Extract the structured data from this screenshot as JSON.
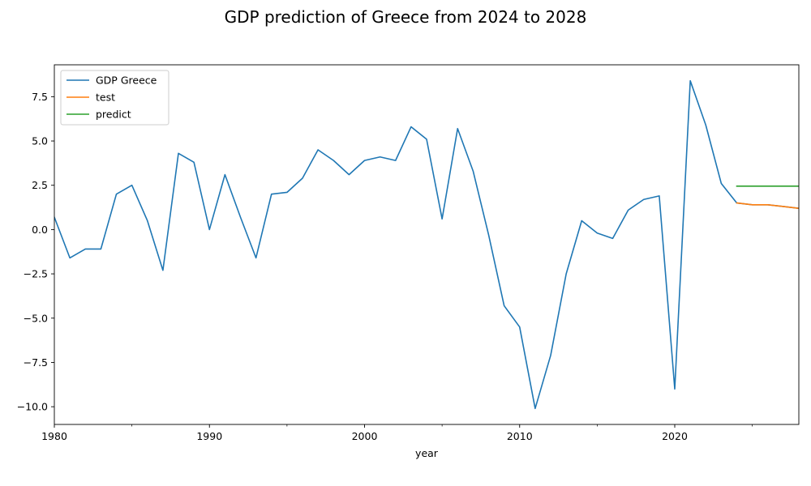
{
  "chart_data": {
    "type": "line",
    "title": "GDP prediction of Greece from 2024 to 2028",
    "xlabel": "year",
    "ylabel": "",
    "xlim": [
      1980,
      2028
    ],
    "ylim": [
      -11.0,
      9.3
    ],
    "x_ticks": [
      {
        "value": 1980,
        "label": "1980"
      },
      {
        "value": 1990,
        "label": "1990"
      },
      {
        "value": 2000,
        "label": "2000"
      },
      {
        "value": 2010,
        "label": "2010"
      },
      {
        "value": 2020,
        "label": "2020"
      }
    ],
    "x_minor_ticks": [
      1985,
      1995,
      2005,
      2015,
      2025
    ],
    "y_ticks": [
      {
        "value": 7.5,
        "label": "7.5"
      },
      {
        "value": 5.0,
        "label": "5.0"
      },
      {
        "value": 2.5,
        "label": "2.5"
      },
      {
        "value": 0.0,
        "label": "0.0"
      },
      {
        "value": -2.5,
        "label": "−2.5"
      },
      {
        "value": -5.0,
        "label": "−5.0"
      },
      {
        "value": -7.5,
        "label": "−7.5"
      },
      {
        "value": -10.0,
        "label": "−10.0"
      }
    ],
    "grid": false,
    "legend_position": "top-left",
    "series": [
      {
        "name": "GDP Greece",
        "color": "#1f77b4",
        "points": [
          [
            1980,
            0.7
          ],
          [
            1981,
            -1.6
          ],
          [
            1982,
            -1.1
          ],
          [
            1983,
            -1.1
          ],
          [
            1984,
            2.0
          ],
          [
            1985,
            2.5
          ],
          [
            1986,
            0.5
          ],
          [
            1987,
            -2.3
          ],
          [
            1988,
            4.3
          ],
          [
            1989,
            3.8
          ],
          [
            1990,
            0.0
          ],
          [
            1991,
            3.1
          ],
          [
            1992,
            0.7
          ],
          [
            1993,
            -1.6
          ],
          [
            1994,
            2.0
          ],
          [
            1995,
            2.1
          ],
          [
            1996,
            2.9
          ],
          [
            1997,
            4.5
          ],
          [
            1998,
            3.9
          ],
          [
            1999,
            3.1
          ],
          [
            2000,
            3.9
          ],
          [
            2001,
            4.1
          ],
          [
            2002,
            3.9
          ],
          [
            2003,
            5.8
          ],
          [
            2004,
            5.1
          ],
          [
            2005,
            0.6
          ],
          [
            2006,
            5.7
          ],
          [
            2007,
            3.3
          ],
          [
            2008,
            -0.3
          ],
          [
            2009,
            -4.3
          ],
          [
            2010,
            -5.5
          ],
          [
            2011,
            -10.1
          ],
          [
            2012,
            -7.1
          ],
          [
            2013,
            -2.5
          ],
          [
            2014,
            0.5
          ],
          [
            2015,
            -0.2
          ],
          [
            2016,
            -0.5
          ],
          [
            2017,
            1.1
          ],
          [
            2018,
            1.7
          ],
          [
            2019,
            1.9
          ],
          [
            2020,
            -9.0
          ],
          [
            2021,
            8.4
          ],
          [
            2022,
            5.9
          ],
          [
            2023,
            2.6
          ],
          [
            2024,
            1.5
          ],
          [
            2025,
            1.4
          ],
          [
            2026,
            1.4
          ],
          [
            2027,
            1.3
          ],
          [
            2028,
            1.2
          ]
        ]
      },
      {
        "name": "test",
        "color": "#ff7f0e",
        "points": [
          [
            2024,
            1.5
          ],
          [
            2025,
            1.4
          ],
          [
            2026,
            1.4
          ],
          [
            2027,
            1.3
          ],
          [
            2028,
            1.2
          ]
        ]
      },
      {
        "name": "predict",
        "color": "#2ca02c",
        "points": [
          [
            2024,
            2.45
          ],
          [
            2025,
            2.45
          ],
          [
            2026,
            2.45
          ],
          [
            2027,
            2.45
          ],
          [
            2028,
            2.45
          ]
        ]
      }
    ]
  }
}
